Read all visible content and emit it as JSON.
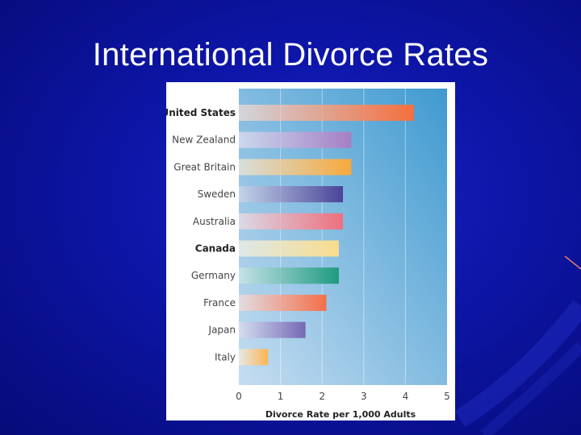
{
  "slide": {
    "title": "International Divorce Rates"
  },
  "chart_data": {
    "type": "bar",
    "orientation": "horizontal",
    "title": "",
    "xlabel": "Divorce Rate per 1,000 Adults",
    "ylabel": "",
    "xlim": [
      0,
      5
    ],
    "x_ticks": [
      "0",
      "1",
      "2",
      "3",
      "4",
      "5"
    ],
    "grid": true,
    "categories": [
      "United States",
      "New Zealand",
      "Great Britain",
      "Sweden",
      "Australia",
      "Canada",
      "Germany",
      "France",
      "Japan",
      "Italy"
    ],
    "values": [
      4.2,
      2.7,
      2.7,
      2.5,
      2.5,
      2.4,
      2.4,
      2.1,
      1.6,
      0.7
    ],
    "bold_categories": [
      "United States",
      "Canada"
    ],
    "bar_colors": [
      "#f56f3f",
      "#a57fc5",
      "#f7a93b",
      "#4a4498",
      "#ee6f7e",
      "#f9dc8c",
      "#1f9a7f",
      "#f46e49",
      "#7568b4",
      "#f9b553"
    ]
  }
}
